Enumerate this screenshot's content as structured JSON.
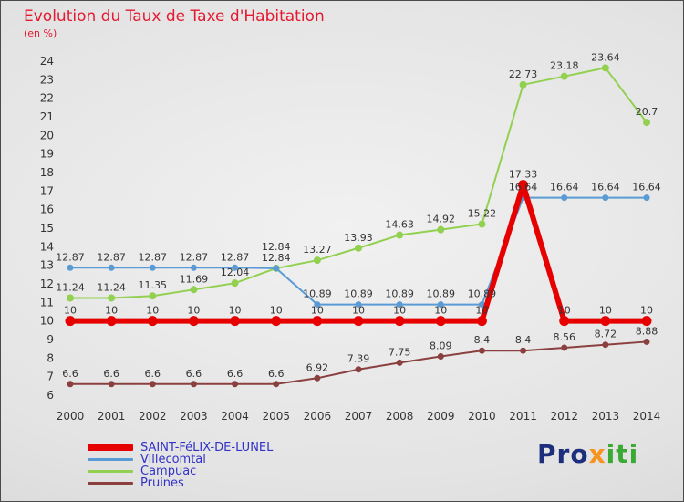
{
  "title": "Evolution du Taux de Taxe d'Habitation",
  "subtitle": "(en %)",
  "logo": {
    "pro": "Pro",
    "x": "x",
    "iti": "iti"
  },
  "colors": {
    "title": "#e41a30",
    "legend_text": "#3232c8",
    "axis_text": "#333333",
    "label_text": "#333333"
  },
  "chart_data": {
    "type": "line",
    "title": "Evolution du Taux de Taxe d'Habitation",
    "ylabel": "en %",
    "x": [
      2000,
      2001,
      2002,
      2003,
      2004,
      2005,
      2006,
      2007,
      2008,
      2009,
      2010,
      2011,
      2012,
      2013,
      2014
    ],
    "ylim": [
      6,
      24
    ],
    "ytick_step": 1,
    "grid": false,
    "legend_position": "bottom-left",
    "series": [
      {
        "name": "SAINT-FéLIX-DE-LUNEL",
        "color": "#e60000",
        "width": 6,
        "marker": 5.5,
        "values": [
          10,
          10,
          10,
          10,
          10,
          10,
          10,
          10,
          10,
          10,
          10,
          17.33,
          10,
          10,
          10
        ]
      },
      {
        "name": "Villecomtal",
        "color": "#5b9bd5",
        "width": 2,
        "marker": 3.5,
        "values": [
          12.87,
          12.87,
          12.87,
          12.87,
          12.87,
          12.84,
          10.89,
          10.89,
          10.89,
          10.89,
          10.89,
          16.64,
          16.64,
          16.64,
          16.64
        ]
      },
      {
        "name": "Campuac",
        "color": "#92d050",
        "width": 2,
        "marker": 4,
        "values": [
          11.24,
          11.24,
          11.35,
          11.69,
          12.04,
          12.84,
          13.27,
          13.93,
          14.63,
          14.92,
          15.22,
          22.73,
          23.18,
          23.64,
          20.7
        ]
      },
      {
        "name": "Pruines",
        "color": "#8b4040",
        "width": 2,
        "marker": 3.5,
        "values": [
          6.6,
          6.6,
          6.6,
          6.6,
          6.6,
          6.6,
          6.92,
          7.39,
          7.75,
          8.09,
          8.4,
          8.4,
          8.56,
          8.72,
          8.88
        ]
      }
    ]
  }
}
